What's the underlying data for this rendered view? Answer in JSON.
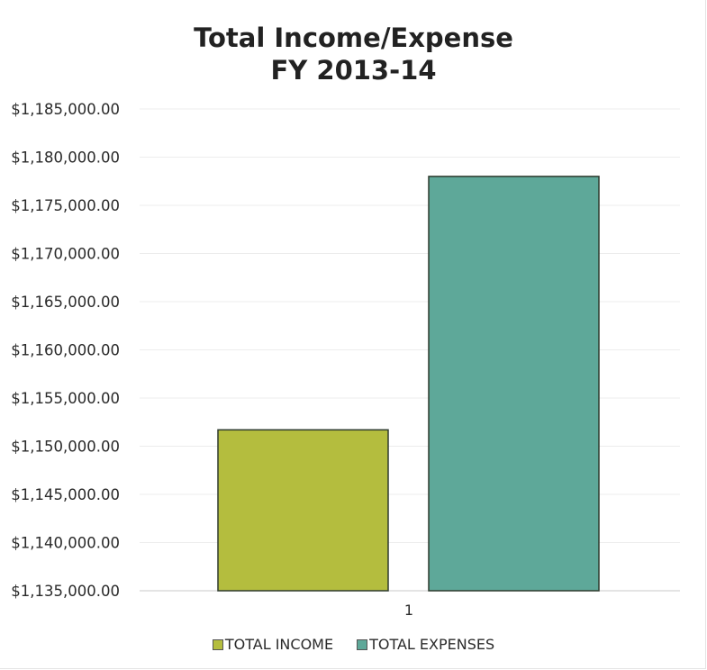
{
  "chart_data": {
    "type": "bar",
    "title_line1": "Total Income/Expense",
    "title_line2": "FY 2013-14",
    "categories": [
      "1"
    ],
    "series": [
      {
        "name": "TOTAL INCOME",
        "values": [
          1151700
        ],
        "color": "#b4bd3e"
      },
      {
        "name": "TOTAL EXPENSES",
        "values": [
          1178000
        ],
        "color": "#5ea899"
      }
    ],
    "ylim": [
      1135000,
      1185000
    ],
    "ytick_labels": [
      "$1,185,000.00",
      "$1,180,000.00",
      "$1,175,000.00",
      "$1,170,000.00",
      "$1,165,000.00",
      "$1,160,000.00",
      "$1,155,000.00",
      "$1,150,000.00",
      "$1,145,000.00",
      "$1,140,000.00",
      "$1,135,000.00"
    ],
    "ytick_values": [
      1185000,
      1180000,
      1175000,
      1170000,
      1165000,
      1160000,
      1155000,
      1150000,
      1145000,
      1140000,
      1135000
    ],
    "grid": true,
    "legend": "bottom"
  }
}
